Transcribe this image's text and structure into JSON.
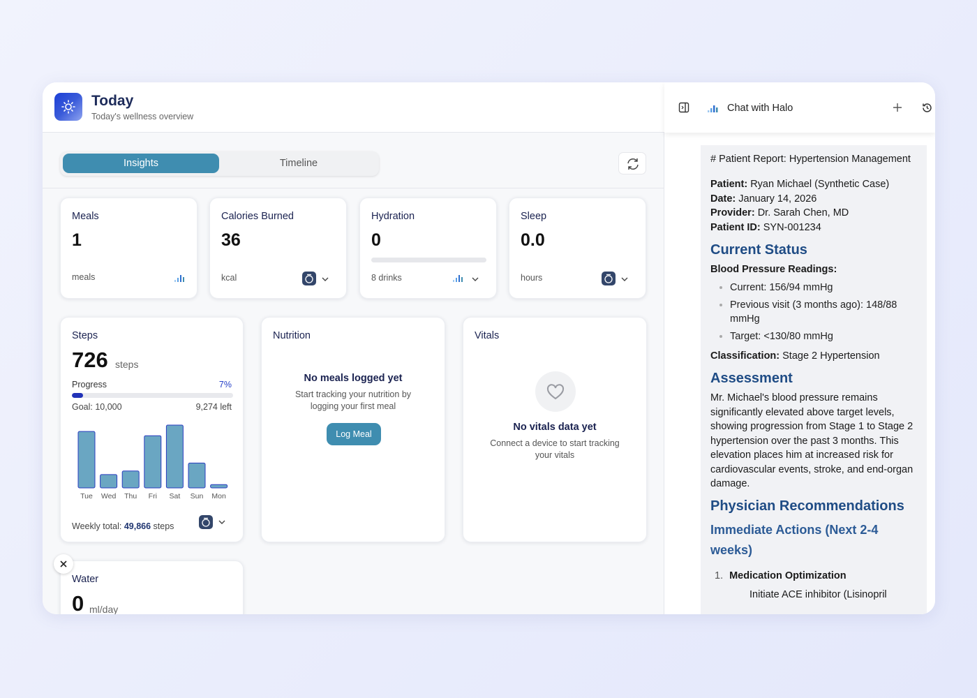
{
  "header": {
    "title": "Today",
    "subtitle": "Today's wellness overview"
  },
  "tabs": [
    "Insights",
    "Timeline"
  ],
  "metrics": [
    {
      "title": "Meals",
      "value": "1",
      "unit": "meals"
    },
    {
      "title": "Calories Burned",
      "value": "36",
      "unit": "kcal"
    },
    {
      "title": "Hydration",
      "value": "0",
      "unit": "8 drinks"
    },
    {
      "title": "Sleep",
      "value": "0.0",
      "unit": "hours"
    }
  ],
  "steps": {
    "title": "Steps",
    "value": "726",
    "unit": "steps",
    "progress_label": "Progress",
    "progress_value": 7,
    "progress_text": "7%",
    "goal": "Goal: 10,000",
    "left": "9,274 left",
    "days": [
      "Tue",
      "Wed",
      "Thu",
      "Fri",
      "Sat",
      "Sun",
      "Mon"
    ],
    "daily_steps": [
      12240,
      2900,
      3670,
      11320,
      13620,
      5390,
      726
    ],
    "weekly_label": "Weekly total:",
    "weekly_value": "49,866",
    "weekly_unit": "steps"
  },
  "nutrition": {
    "title": "Nutrition",
    "empty_title": "No meals logged yet",
    "empty_text": "Start tracking your nutrition by logging your first meal",
    "button": "Log Meal"
  },
  "vitals": {
    "title": "Vitals",
    "empty_title": "No vitals data yet",
    "empty_text": "Connect a device to start tracking your vitals"
  },
  "water": {
    "title": "Water",
    "value": "0",
    "unit": "ml/day"
  },
  "chat": {
    "title": "Chat with Halo"
  },
  "report": {
    "heading": "# Patient Report: Hypertension Management",
    "fields": [
      {
        "label": "Patient:",
        "value": "Ryan Michael (Synthetic Case)"
      },
      {
        "label": "Date:",
        "value": "January 14, 2026"
      },
      {
        "label": "Provider:",
        "value": "Dr. Sarah Chen, MD"
      },
      {
        "label": "Patient ID:",
        "value": "SYN-001234"
      }
    ],
    "current_status": "Current Status",
    "bp_label": "Blood Pressure Readings:",
    "bp_items": [
      "Current: 156/94 mmHg",
      "Previous visit (3 months ago): 148/88 mmHg",
      "Target: <130/80 mmHg"
    ],
    "classification_label": "Classification:",
    "classification_value": "Stage 2 Hypertension",
    "assessment": "Assessment",
    "assessment_text": "Mr. Michael's blood pressure remains significantly elevated above target levels, showing progression from Stage 1 to Stage 2 hypertension over the past 3 months. This elevation places him at increased risk for cardiovascular events, stroke, and end-organ damage.",
    "recommendations": "Physician Recommendations",
    "immediate": "Immediate Actions (Next 2-4 weeks)",
    "item_number": "1.",
    "item": "Medication Optimization",
    "sub_item": "Initiate ACE inhibitor (Lisinopril"
  }
}
